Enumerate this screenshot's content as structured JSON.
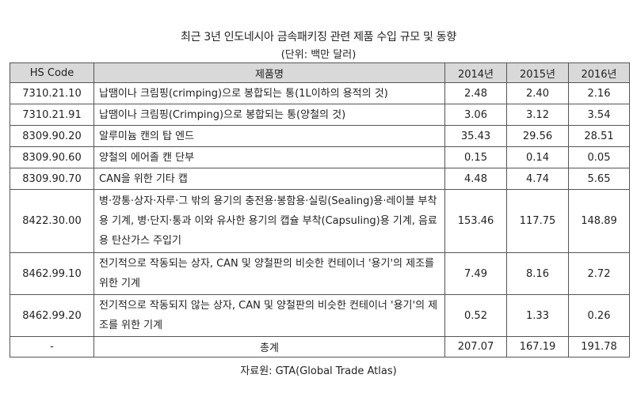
{
  "title": "최근 3년 인도네시아 금속패키징 관련 제품 수입 규모 및 동향",
  "unit": "(단위: 백만 달러)",
  "source": "자료원: GTA(Global Trade Atlas)",
  "table": {
    "headers": [
      "HS Code",
      "제품명",
      "2014년",
      "2015년",
      "2016년"
    ],
    "rows": [
      {
        "code": "7310.21.10",
        "name": "납땜이나 크림핑(crimping)으로 봉합되는 통(1L이하의 용적의 것)",
        "y2014": "2.48",
        "y2015": "2.40",
        "y2016": "2.16"
      },
      {
        "code": "7310.21.91",
        "name": "납땜이나 크림핑(Crimping)으로 봉합되는 통(양철의 것)",
        "y2014": "3.06",
        "y2015": "3.12",
        "y2016": "3.54"
      },
      {
        "code": "8309.90.20",
        "name": "알루미늄 캔의 탑 엔드",
        "y2014": "35.43",
        "y2015": "29.56",
        "y2016": "28.51"
      },
      {
        "code": "8309.90.60",
        "name": "양철의 에어졸 캔 단부",
        "y2014": "0.15",
        "y2015": "0.14",
        "y2016": "0.05"
      },
      {
        "code": "8309.90.70",
        "name": "CAN을 위한 기타 캡",
        "y2014": "4.48",
        "y2015": "4.74",
        "y2016": "5.65"
      },
      {
        "code": "8422.30.00",
        "name": "병·깡통·상자·자루·그 밖의 용기의 충전용·봉함용·실링(Sealing)용·레이블 부착용 기계, 병·단지·통과 이와 유사한 용기의 캡슐 부착(Capsuling)용 기계, 음료용 탄산가스 주입기",
        "y2014": "153.46",
        "y2015": "117.75",
        "y2016": "148.89"
      },
      {
        "code": "8462.99.10",
        "name": "전기적으로 작동되는 상자, CAN 및 양철판의 비슷한 컨테이너 '용기'의 제조를 위한 기계",
        "y2014": "7.49",
        "y2015": "8.16",
        "y2016": "2.72"
      },
      {
        "code": "8462.99.20",
        "name": "전기적으로 작동되지 않는 상자, CAN 및 양철판의 비슷한 컨테이너 '용기'의 제조를 위한 기계",
        "y2014": "0.52",
        "y2015": "1.33",
        "y2016": "0.26"
      }
    ],
    "total": {
      "code": "-",
      "label": "총계",
      "y2014": "207.07",
      "y2015": "167.19",
      "y2016": "191.78"
    }
  }
}
